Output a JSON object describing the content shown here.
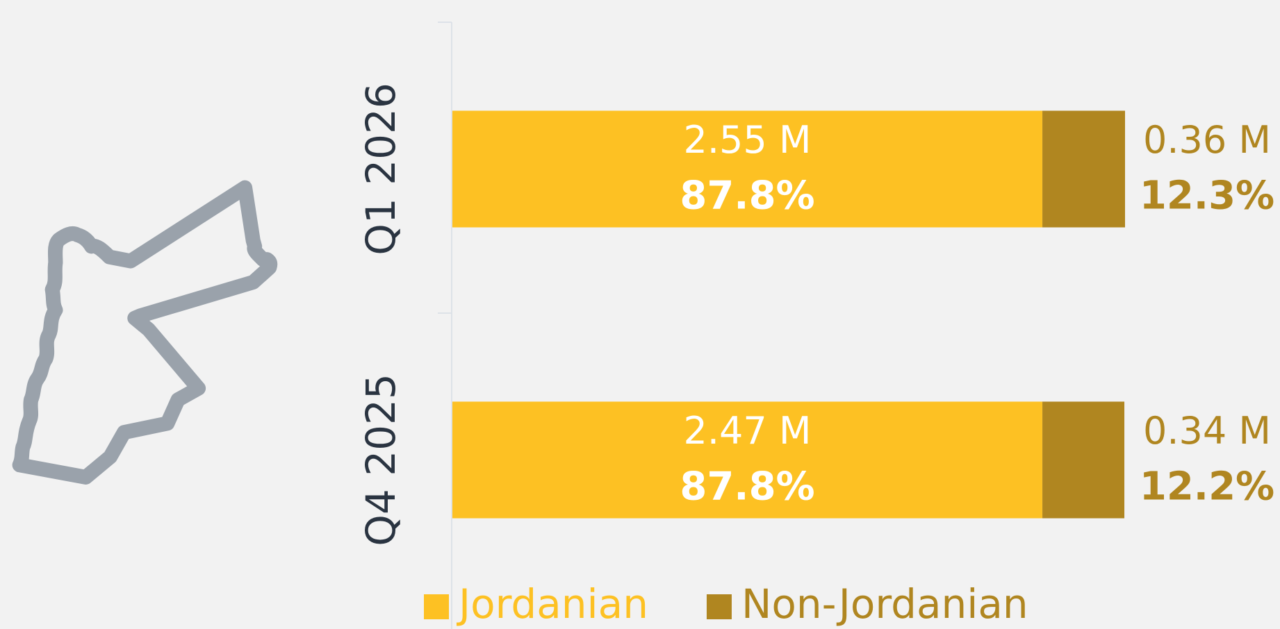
{
  "chart_data": {
    "type": "stacked_bar_horizontal_percent",
    "categories": [
      "Q1 2026",
      "Q4 2025"
    ],
    "series": [
      {
        "name": "Jordanian",
        "color": "#fdc123",
        "values": [
          87.8,
          87.8
        ],
        "value_labels": [
          "87.8%",
          "87.8%"
        ],
        "amount_labels": [
          "2.55 M",
          "2.47 M"
        ]
      },
      {
        "name": "Non-Jordanian",
        "color": "#b08620",
        "values": [
          12.3,
          12.2
        ],
        "value_labels": [
          "12.3%",
          "12.2%"
        ],
        "amount_labels": [
          "0.36 M",
          "0.34 M"
        ]
      }
    ],
    "xlim": [
      0,
      100.1
    ],
    "legend": "bottom"
  }
}
